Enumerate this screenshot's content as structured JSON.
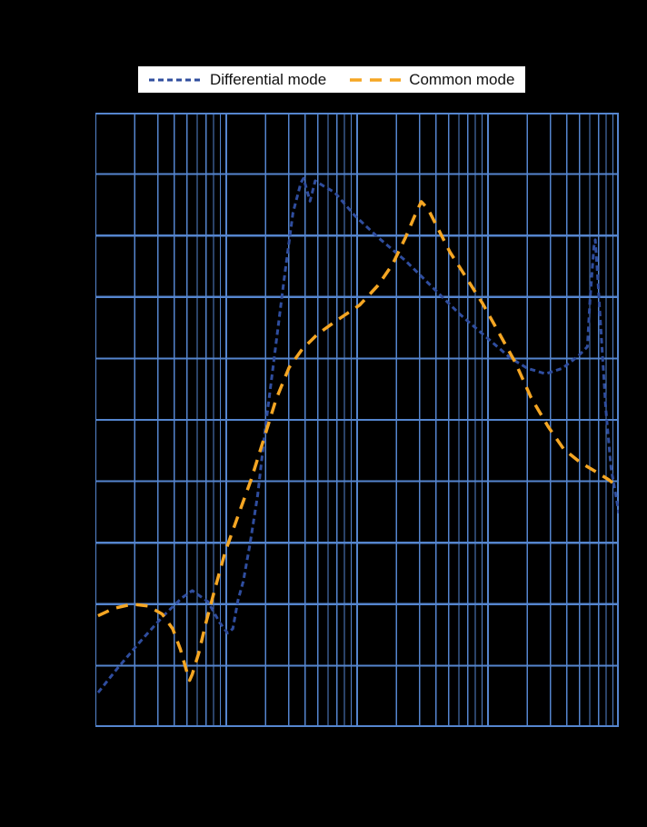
{
  "legend": {
    "items": [
      {
        "label": "Differential mode",
        "color": "#2f4d9e",
        "dash": [
          6,
          4
        ],
        "width": 3
      },
      {
        "label": "Common mode",
        "color": "#f5a623",
        "dash": [
          13,
          9
        ],
        "width": 3.5
      }
    ]
  },
  "chart": {
    "background": "#000000",
    "grid_color": "#5585ce",
    "major_line_width": 2.2,
    "minor_line_width": 1.2
  },
  "chart_data": {
    "type": "line",
    "title": "",
    "xlabel": "",
    "ylabel": "",
    "x_axis": {
      "scale": "log",
      "decades": 4,
      "tick_labels_visible": false
    },
    "y_axis": {
      "divisions": 10,
      "tick_labels_visible": false
    },
    "grid": true,
    "legend_position": "top-center",
    "note_units": "x values are log-decade positions from left edge (0-4); y values are grid divisions from bottom (0-10); axis tick labels are not visible in the image",
    "series": [
      {
        "name": "Differential mode",
        "color": "#2f4d9e",
        "dash": [
          6,
          4
        ],
        "stroke_width": 3,
        "points": [
          [
            0.02,
            0.56
          ],
          [
            0.17,
            0.96
          ],
          [
            0.35,
            1.41
          ],
          [
            0.52,
            1.81
          ],
          [
            0.66,
            2.1
          ],
          [
            0.74,
            2.22
          ],
          [
            0.86,
            2.04
          ],
          [
            0.95,
            1.7
          ],
          [
            1.01,
            1.53
          ],
          [
            1.05,
            1.6
          ],
          [
            1.09,
            2.07
          ],
          [
            1.13,
            2.37
          ],
          [
            1.18,
            2.96
          ],
          [
            1.24,
            3.78
          ],
          [
            1.3,
            4.89
          ],
          [
            1.37,
            6.07
          ],
          [
            1.44,
            7.26
          ],
          [
            1.51,
            8.37
          ],
          [
            1.57,
            8.86
          ],
          [
            1.59,
            8.93
          ],
          [
            1.64,
            8.56
          ],
          [
            1.68,
            8.89
          ],
          [
            1.74,
            8.81
          ],
          [
            1.83,
            8.7
          ],
          [
            1.98,
            8.33
          ],
          [
            2.16,
            7.97
          ],
          [
            2.37,
            7.59
          ],
          [
            2.57,
            7.17
          ],
          [
            2.78,
            6.73
          ],
          [
            2.99,
            6.34
          ],
          [
            3.17,
            6.01
          ],
          [
            3.3,
            5.84
          ],
          [
            3.44,
            5.75
          ],
          [
            3.57,
            5.84
          ],
          [
            3.69,
            6.04
          ],
          [
            3.76,
            6.19
          ],
          [
            3.78,
            6.96
          ],
          [
            3.81,
            7.82
          ],
          [
            3.82,
            7.93
          ],
          [
            3.84,
            7.26
          ],
          [
            3.87,
            6.22
          ],
          [
            3.9,
            5.19
          ],
          [
            3.94,
            4.22
          ],
          [
            3.99,
            3.61
          ],
          [
            4.0,
            3.48
          ]
        ]
      },
      {
        "name": "Common mode",
        "color": "#f5a623",
        "dash": [
          13,
          9
        ],
        "stroke_width": 3.5,
        "points": [
          [
            0.02,
            1.81
          ],
          [
            0.14,
            1.93
          ],
          [
            0.28,
            2.0
          ],
          [
            0.4,
            1.97
          ],
          [
            0.51,
            1.84
          ],
          [
            0.59,
            1.6
          ],
          [
            0.65,
            1.26
          ],
          [
            0.7,
            0.89
          ],
          [
            0.72,
            0.76
          ],
          [
            0.74,
            0.86
          ],
          [
            0.79,
            1.21
          ],
          [
            0.84,
            1.66
          ],
          [
            0.91,
            2.22
          ],
          [
            0.99,
            2.84
          ],
          [
            1.09,
            3.44
          ],
          [
            1.19,
            4.03
          ],
          [
            1.29,
            4.71
          ],
          [
            1.38,
            5.33
          ],
          [
            1.48,
            5.85
          ],
          [
            1.58,
            6.15
          ],
          [
            1.7,
            6.4
          ],
          [
            1.86,
            6.64
          ],
          [
            2.02,
            6.87
          ],
          [
            2.16,
            7.19
          ],
          [
            2.27,
            7.53
          ],
          [
            2.37,
            7.97
          ],
          [
            2.45,
            8.37
          ],
          [
            2.49,
            8.55
          ],
          [
            2.54,
            8.44
          ],
          [
            2.61,
            8.15
          ],
          [
            2.71,
            7.73
          ],
          [
            2.83,
            7.33
          ],
          [
            2.96,
            6.89
          ],
          [
            3.08,
            6.43
          ],
          [
            3.21,
            5.93
          ],
          [
            3.33,
            5.36
          ],
          [
            3.46,
            4.89
          ],
          [
            3.58,
            4.52
          ],
          [
            3.71,
            4.3
          ],
          [
            3.83,
            4.15
          ],
          [
            3.92,
            4.03
          ],
          [
            4.0,
            3.9
          ]
        ]
      }
    ]
  }
}
